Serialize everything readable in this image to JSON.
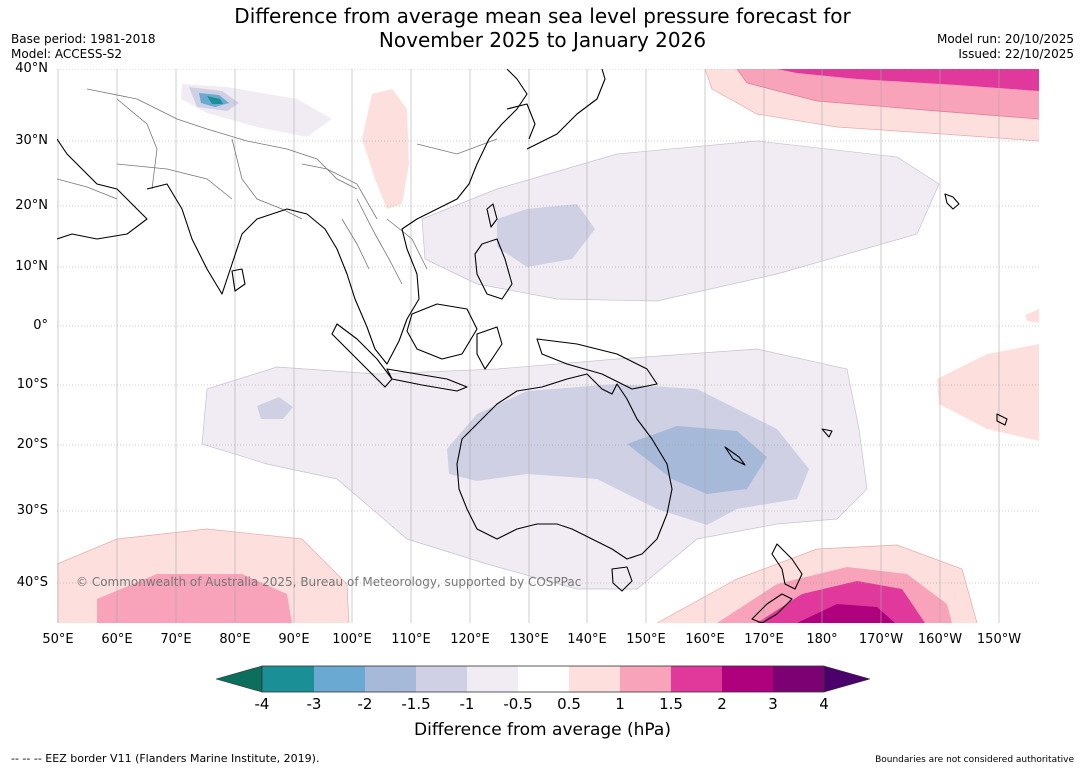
{
  "title_line1": "Difference from average mean sea level pressure forecast for",
  "title_line2": "November 2025 to January 2026",
  "meta_left": {
    "base_period": "Base period: 1981-2018",
    "model": "Model: ACCESS-S2"
  },
  "meta_right": {
    "model_run": "Model run: 20/10/2025",
    "issued": "Issued: 22/10/2025"
  },
  "lat_labels": [
    "40°N",
    "30°N",
    "20°N",
    "10°N",
    "0°",
    "10°S",
    "20°S",
    "30°S",
    "40°S"
  ],
  "lon_labels": [
    "50°E",
    "60°E",
    "70°E",
    "80°E",
    "90°E",
    "100°E",
    "110°E",
    "120°E",
    "130°E",
    "140°E",
    "150°E",
    "160°E",
    "170°E",
    "180°",
    "170°W",
    "160°W",
    "150°W"
  ],
  "copyright": "© Commonwealth of Australia 2025, Bureau of Meteorology, supported by COSPPac",
  "colorbar": {
    "ticks": [
      "-4",
      "-3",
      "-2",
      "-1.5",
      "-1",
      "-0.5",
      "0.5",
      "1",
      "1.5",
      "2",
      "3",
      "4"
    ],
    "colors": [
      "#0c6e5c",
      "#1b8f96",
      "#6aa9d1",
      "#a7b9d8",
      "#cfd0e3",
      "#f1ecf3",
      "#ffffff",
      "#fde0de",
      "#f8a3b9",
      "#e0399b",
      "#af017e",
      "#7c0273",
      "#4c006b"
    ],
    "title": "Difference from average (hPa)"
  },
  "footer_left": "--  --  -- EEZ border V11 (Flanders Marine Institute, 2019).",
  "footer_right": "Boundaries are not considered authoritative"
}
